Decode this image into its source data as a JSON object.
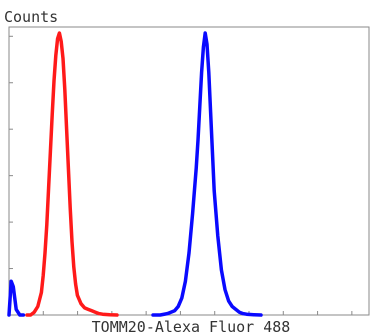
{
  "chart_data": {
    "type": "line",
    "title": "",
    "ylabel": "Counts",
    "xlabel": "TOMM20-Alexa Fluor 488",
    "xlim": [
      0,
      100
    ],
    "ylim": [
      0,
      100
    ],
    "grid": false,
    "legend": "none",
    "series": [
      {
        "color": "#ff1a1a",
        "x": [
          5,
          6,
          7,
          8,
          9,
          9.5,
          10,
          10.5,
          11,
          11.5,
          12,
          12.5,
          13,
          13.5,
          14,
          14.5,
          15,
          15.5,
          16,
          16.5,
          17,
          17.5,
          18,
          18.5,
          19,
          20,
          21,
          22,
          23,
          24,
          25,
          26,
          28,
          30
        ],
        "y": [
          0,
          0,
          1,
          3,
          8,
          14,
          22,
          32,
          45,
          58,
          71,
          83,
          92,
          98,
          100,
          97,
          91,
          80,
          66,
          52,
          38,
          26,
          17,
          11,
          7,
          4,
          2.5,
          2,
          1.5,
          1,
          0.5,
          0.3,
          0.1,
          0
        ]
      },
      {
        "color": "#0a0aff",
        "x": [
          0,
          0.6,
          1.2,
          2,
          3,
          4
        ],
        "y": [
          0,
          12,
          10,
          2,
          0,
          0
        ]
      },
      {
        "color": "#0a0aff",
        "x": [
          40,
          42,
          44,
          46,
          47,
          48,
          49,
          50,
          51,
          52,
          52.5,
          53,
          53.5,
          54,
          54.5,
          55,
          55.5,
          56,
          56.5,
          57,
          58,
          59,
          60,
          61,
          62,
          63,
          64,
          65,
          66,
          68,
          70
        ],
        "y": [
          0,
          0,
          0.5,
          1.5,
          3,
          6,
          12,
          22,
          36,
          52,
          62,
          74,
          86,
          95,
          100,
          96,
          86,
          72,
          58,
          44,
          28,
          16,
          9,
          5,
          3,
          2,
          1,
          0.5,
          0.3,
          0.1,
          0
        ]
      }
    ]
  }
}
